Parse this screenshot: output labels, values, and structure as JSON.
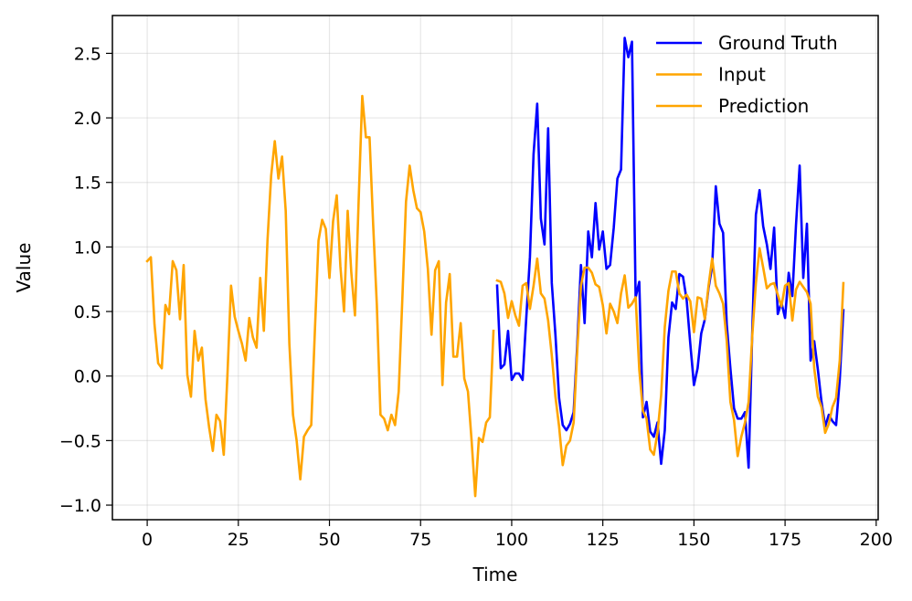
{
  "chart_data": {
    "type": "line",
    "title": "",
    "xlabel": "Time",
    "ylabel": "Value",
    "xlim": [
      -9.55,
      200.55
    ],
    "ylim": [
      -1.113,
      2.793
    ],
    "xticks": [
      0,
      25,
      50,
      75,
      100,
      125,
      150,
      175,
      200
    ],
    "xtick_labels": [
      "0",
      "25",
      "50",
      "75",
      "100",
      "125",
      "150",
      "175",
      "200"
    ],
    "yticks": [
      -1.0,
      -0.5,
      0.0,
      0.5,
      1.0,
      1.5,
      2.0,
      2.5
    ],
    "ytick_labels": [
      "−1.0",
      "−0.5",
      "0.0",
      "0.5",
      "1.0",
      "1.5",
      "2.0",
      "2.5"
    ],
    "grid": true,
    "legend_position": "upper right",
    "series": [
      {
        "name": "Ground Truth",
        "color": "#0000ff",
        "x_start": 96,
        "values": [
          0.7,
          0.06,
          0.09,
          0.35,
          -0.03,
          0.02,
          0.02,
          -0.03,
          0.45,
          0.92,
          1.72,
          2.11,
          1.22,
          1.02,
          1.92,
          0.72,
          0.32,
          -0.17,
          -0.38,
          -0.42,
          -0.37,
          -0.28,
          0.25,
          0.86,
          0.41,
          1.12,
          0.92,
          1.34,
          0.98,
          1.12,
          0.83,
          0.86,
          1.15,
          1.53,
          1.6,
          2.62,
          2.47,
          2.59,
          0.61,
          0.73,
          -0.32,
          -0.2,
          -0.43,
          -0.47,
          -0.36,
          -0.68,
          -0.42,
          0.3,
          0.57,
          0.52,
          0.79,
          0.77,
          0.59,
          0.25,
          -0.07,
          0.06,
          0.33,
          0.44,
          0.68,
          0.85,
          1.47,
          1.18,
          1.11,
          0.4,
          0.06,
          -0.25,
          -0.33,
          -0.33,
          -0.28,
          -0.71,
          0.34,
          1.25,
          1.44,
          1.16,
          1.02,
          0.83,
          1.15,
          0.48,
          0.57,
          0.45,
          0.8,
          0.62,
          1.17,
          1.63,
          0.76,
          1.18,
          0.12,
          0.27,
          0.05,
          -0.2,
          -0.39,
          -0.3,
          -0.35,
          -0.38,
          -0.03,
          0.51
        ]
      },
      {
        "name": "Input",
        "color": "#ffa500",
        "x_start": 0,
        "values": [
          0.89,
          0.92,
          0.4,
          0.1,
          0.06,
          0.55,
          0.48,
          0.89,
          0.82,
          0.44,
          0.86,
          0.01,
          -0.16,
          0.35,
          0.12,
          0.22,
          -0.18,
          -0.4,
          -0.58,
          -0.3,
          -0.35,
          -0.61,
          0.0,
          0.7,
          0.46,
          0.35,
          0.25,
          0.12,
          0.45,
          0.3,
          0.22,
          0.76,
          0.35,
          1.05,
          1.55,
          1.82,
          1.53,
          1.7,
          1.28,
          0.25,
          -0.3,
          -0.5,
          -0.8,
          -0.47,
          -0.42,
          -0.38,
          0.35,
          1.05,
          1.21,
          1.14,
          0.76,
          1.2,
          1.4,
          0.85,
          0.5,
          1.28,
          0.8,
          0.47,
          1.35,
          2.17,
          1.85,
          1.85,
          1.17,
          0.55,
          -0.3,
          -0.33,
          -0.42,
          -0.3,
          -0.38,
          -0.12,
          0.6,
          1.35,
          1.63,
          1.44,
          1.3,
          1.27,
          1.12,
          0.83,
          0.32,
          0.82,
          0.89,
          -0.07,
          0.57,
          0.79,
          0.15,
          0.15,
          0.41,
          -0.02,
          -0.12,
          -0.5,
          -0.93,
          -0.48,
          -0.51,
          -0.36,
          -0.32,
          0.35
        ]
      },
      {
        "name": "Prediction",
        "color": "#ffa500",
        "x_start": 96,
        "values": [
          0.74,
          0.73,
          0.64,
          0.45,
          0.58,
          0.47,
          0.39,
          0.7,
          0.72,
          0.52,
          0.7,
          0.91,
          0.64,
          0.6,
          0.43,
          0.16,
          -0.16,
          -0.39,
          -0.69,
          -0.54,
          -0.5,
          -0.36,
          0.2,
          0.7,
          0.84,
          0.84,
          0.8,
          0.71,
          0.69,
          0.55,
          0.33,
          0.56,
          0.5,
          0.41,
          0.64,
          0.78,
          0.53,
          0.56,
          0.61,
          0.05,
          -0.27,
          -0.33,
          -0.57,
          -0.61,
          -0.44,
          -0.15,
          0.38,
          0.66,
          0.81,
          0.81,
          0.64,
          0.6,
          0.63,
          0.58,
          0.34,
          0.61,
          0.6,
          0.44,
          0.7,
          0.91,
          0.7,
          0.64,
          0.56,
          0.27,
          -0.2,
          -0.34,
          -0.62,
          -0.47,
          -0.36,
          -0.2,
          0.31,
          0.72,
          0.99,
          0.84,
          0.68,
          0.71,
          0.72,
          0.63,
          0.54,
          0.7,
          0.72,
          0.43,
          0.67,
          0.73,
          0.69,
          0.65,
          0.56,
          0.06,
          -0.16,
          -0.24,
          -0.44,
          -0.37,
          -0.24,
          -0.17,
          0.12,
          0.72
        ]
      }
    ]
  }
}
